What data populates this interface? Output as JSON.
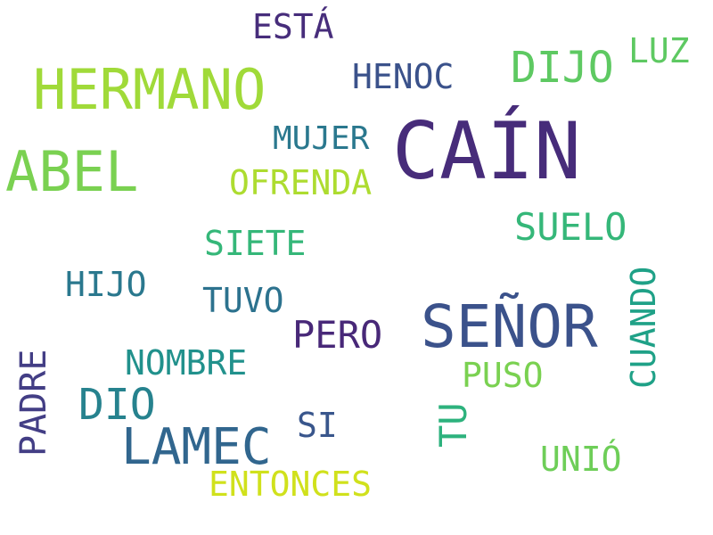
{
  "words": [
    {
      "text": "CAÍN",
      "color": "#472c7a"
    },
    {
      "text": "HERMANO",
      "color": "#a0da39"
    },
    {
      "text": "SEÑOR",
      "color": "#3b528b"
    },
    {
      "text": "ABEL",
      "color": "#7ad151"
    },
    {
      "text": "LAMEC",
      "color": "#31668e"
    },
    {
      "text": "DIJO",
      "color": "#5ec962"
    },
    {
      "text": "DIO",
      "color": "#26828e"
    },
    {
      "text": "SUELO",
      "color": "#35b779"
    },
    {
      "text": "HENOC",
      "color": "#3b528b"
    },
    {
      "text": "MUJER",
      "color": "#2a788e"
    },
    {
      "text": "OFRENDA",
      "color": "#addc30"
    },
    {
      "text": "ESTÁ",
      "color": "#472d7b"
    },
    {
      "text": "LUZ",
      "color": "#5ec962"
    },
    {
      "text": "SIETE",
      "color": "#35b779"
    },
    {
      "text": "HIJO",
      "color": "#2a788e"
    },
    {
      "text": "TUVO",
      "color": "#2c728e"
    },
    {
      "text": "PERO",
      "color": "#482878"
    },
    {
      "text": "NOMBRE",
      "color": "#21918c"
    },
    {
      "text": "PUSO",
      "color": "#7ad151"
    },
    {
      "text": "SI",
      "color": "#39568c"
    },
    {
      "text": "ENTONCES",
      "color": "#d0e11c"
    },
    {
      "text": "UNIÓ",
      "color": "#6ece58"
    },
    {
      "text": "CUANDO",
      "color": "#1fa187"
    },
    {
      "text": "TU",
      "color": "#2db27d"
    },
    {
      "text": "PADRE",
      "color": "#433e85"
    }
  ]
}
